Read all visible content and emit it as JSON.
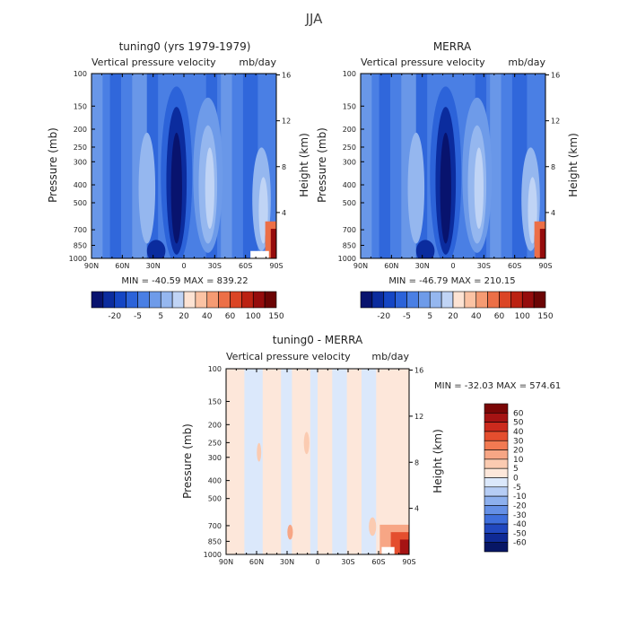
{
  "figure": {
    "title": "JJA"
  },
  "chart_data": [
    {
      "type": "heatmap",
      "title": "tuning0 (yrs 1979-1979)",
      "subtitle_left": "Vertical pressure velocity",
      "subtitle_right": "mb/day",
      "xlabel": "",
      "ylabel": "Pressure (mb)",
      "ylabel_right": "Height (km)",
      "x_ticks": [
        "90N",
        "60N",
        "30N",
        "0",
        "30S",
        "60S",
        "90S"
      ],
      "y_ticks": [
        "100",
        "150",
        "200",
        "250",
        "300",
        "400",
        "500",
        "700",
        "850",
        "1000"
      ],
      "y_right_ticks": [
        "16",
        "12",
        "8",
        "4"
      ],
      "ylim": [
        1000,
        100
      ],
      "stats": "MIN = -40.59   MAX = 839.22",
      "colorbar_labels": [
        "-20",
        "-5",
        "5",
        "20",
        "40",
        "60",
        "100",
        "150"
      ]
    },
    {
      "type": "heatmap",
      "title": "MERRA",
      "subtitle_left": "Vertical pressure velocity",
      "subtitle_right": "mb/day",
      "xlabel": "",
      "ylabel": "Pressure (mb)",
      "ylabel_right": "Height (km)",
      "x_ticks": [
        "90N",
        "60N",
        "30N",
        "0",
        "30S",
        "60S",
        "90S"
      ],
      "y_ticks": [
        "100",
        "150",
        "200",
        "250",
        "300",
        "400",
        "500",
        "700",
        "850",
        "1000"
      ],
      "y_right_ticks": [
        "16",
        "12",
        "8",
        "4"
      ],
      "ylim": [
        1000,
        100
      ],
      "stats": "MIN = -46.79   MAX = 210.15",
      "colorbar_labels": [
        "-20",
        "-5",
        "5",
        "20",
        "40",
        "60",
        "100",
        "150"
      ]
    },
    {
      "type": "heatmap",
      "title": "tuning0 - MERRA",
      "subtitle_left": "Vertical pressure velocity",
      "subtitle_right": "mb/day",
      "xlabel": "",
      "ylabel": "Pressure (mb)",
      "ylabel_right": "Height (km)",
      "x_ticks": [
        "90N",
        "60N",
        "30N",
        "0",
        "30S",
        "60S",
        "90S"
      ],
      "y_ticks": [
        "100",
        "150",
        "200",
        "250",
        "300",
        "400",
        "500",
        "700",
        "850",
        "1000"
      ],
      "y_right_ticks": [
        "16",
        "12",
        "8",
        "4"
      ],
      "ylim": [
        1000,
        100
      ],
      "stats": "MIN = -32.03   MAX = 574.61",
      "colorbar_labels": [
        "60",
        "50",
        "40",
        "30",
        "20",
        "10",
        "5",
        "0",
        "-5",
        "-10",
        "-20",
        "-30",
        "-40",
        "-50",
        "-60"
      ]
    }
  ]
}
